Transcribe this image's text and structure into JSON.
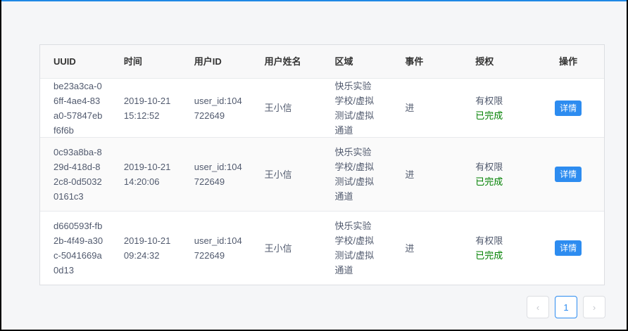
{
  "table": {
    "headers": [
      "UUID",
      "时间",
      "用户ID",
      "用户姓名",
      "区域",
      "事件",
      "授权",
      "操作"
    ],
    "rows": [
      {
        "uuid": "be23a3ca-06ff-4ae4-83a0-57847ebf6f6b",
        "time": "2019-10-21 15:12:52",
        "user_id": "user_id:104722649",
        "name": "王小信",
        "area": "快乐实验学校/虚拟测试/虚拟通道",
        "event": "进",
        "auth": "有权限",
        "status": "已完成",
        "action": "详情"
      },
      {
        "uuid": "0c93a8ba-829d-418d-82c8-0d50320161c3",
        "time": "2019-10-21 14:20:06",
        "user_id": "user_id:104722649",
        "name": "王小信",
        "area": "快乐实验学校/虚拟测试/虚拟通道",
        "event": "进",
        "auth": "有权限",
        "status": "已完成",
        "action": "详情"
      },
      {
        "uuid": "d660593f-fb2b-4f49-a30c-5041669a0d13",
        "time": "2019-10-21 09:24:32",
        "user_id": "user_id:104722649",
        "name": "王小信",
        "area": "快乐实验学校/虚拟测试/虚拟通道",
        "event": "进",
        "auth": "有权限",
        "status": "已完成",
        "action": "详情"
      }
    ]
  },
  "pagination": {
    "prev_icon": "chevron-left-icon",
    "current": "1",
    "next_icon": "chevron-right-icon"
  },
  "colors": {
    "accent": "#2d8cf0",
    "success": "#008000"
  }
}
